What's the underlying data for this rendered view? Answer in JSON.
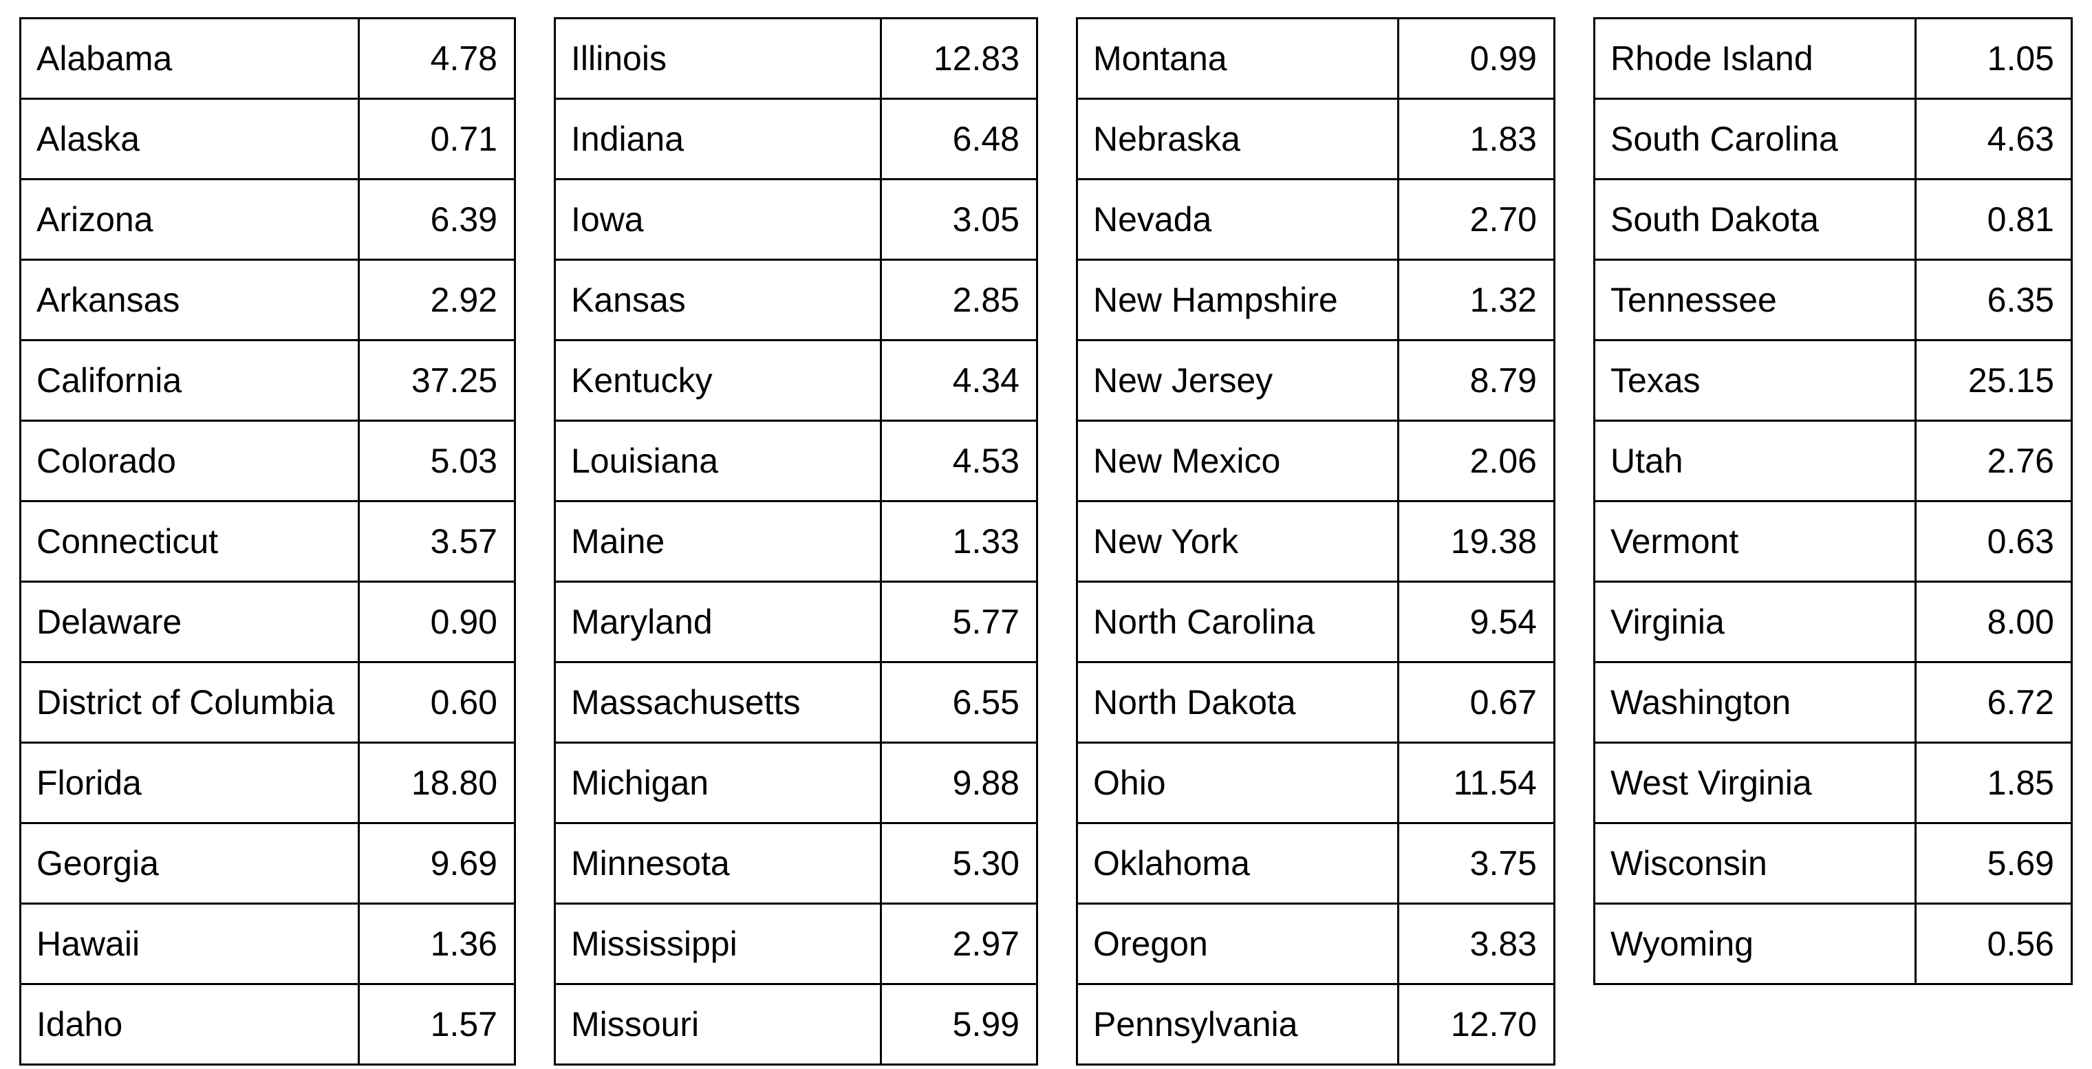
{
  "text_color": "#000000",
  "border_color": "#000000",
  "background_color": "#ffffff",
  "tables": [
    {
      "name": "states-alabama-to-idaho",
      "rows": [
        {
          "state": "Alabama",
          "value": "4.78"
        },
        {
          "state": "Alaska",
          "value": "0.71"
        },
        {
          "state": "Arizona",
          "value": "6.39"
        },
        {
          "state": "Arkansas",
          "value": "2.92"
        },
        {
          "state": "California",
          "value": "37.25"
        },
        {
          "state": "Colorado",
          "value": "5.03"
        },
        {
          "state": "Connecticut",
          "value": "3.57"
        },
        {
          "state": "Delaware",
          "value": "0.90"
        },
        {
          "state": "District of Columbia",
          "value": "0.60"
        },
        {
          "state": "Florida",
          "value": "18.80"
        },
        {
          "state": "Georgia",
          "value": "9.69"
        },
        {
          "state": "Hawaii",
          "value": "1.36"
        },
        {
          "state": "Idaho",
          "value": "1.57"
        }
      ]
    },
    {
      "name": "states-illinois-to-missouri",
      "rows": [
        {
          "state": "Illinois",
          "value": "12.83"
        },
        {
          "state": "Indiana",
          "value": "6.48"
        },
        {
          "state": "Iowa",
          "value": "3.05"
        },
        {
          "state": "Kansas",
          "value": "2.85"
        },
        {
          "state": "Kentucky",
          "value": "4.34"
        },
        {
          "state": "Louisiana",
          "value": "4.53"
        },
        {
          "state": "Maine",
          "value": "1.33"
        },
        {
          "state": "Maryland",
          "value": "5.77"
        },
        {
          "state": "Massachusetts",
          "value": "6.55"
        },
        {
          "state": "Michigan",
          "value": "9.88"
        },
        {
          "state": "Minnesota",
          "value": "5.30"
        },
        {
          "state": "Mississippi",
          "value": "2.97"
        },
        {
          "state": "Missouri",
          "value": "5.99"
        }
      ]
    },
    {
      "name": "states-montana-to-pennsylvania",
      "rows": [
        {
          "state": "Montana",
          "value": "0.99"
        },
        {
          "state": "Nebraska",
          "value": "1.83"
        },
        {
          "state": "Nevada",
          "value": "2.70"
        },
        {
          "state": "New Hampshire",
          "value": "1.32"
        },
        {
          "state": "New Jersey",
          "value": "8.79"
        },
        {
          "state": "New Mexico",
          "value": "2.06"
        },
        {
          "state": "New York",
          "value": "19.38"
        },
        {
          "state": "North Carolina",
          "value": "9.54"
        },
        {
          "state": "North Dakota",
          "value": "0.67"
        },
        {
          "state": "Ohio",
          "value": "11.54"
        },
        {
          "state": "Oklahoma",
          "value": "3.75"
        },
        {
          "state": "Oregon",
          "value": "3.83"
        },
        {
          "state": "Pennsylvania",
          "value": "12.70"
        }
      ]
    },
    {
      "name": "states-rhode-island-to-wyoming",
      "rows": [
        {
          "state": "Rhode Island",
          "value": "1.05"
        },
        {
          "state": "South Carolina",
          "value": "4.63"
        },
        {
          "state": "South Dakota",
          "value": "0.81"
        },
        {
          "state": "Tennessee",
          "value": "6.35"
        },
        {
          "state": "Texas",
          "value": "25.15"
        },
        {
          "state": "Utah",
          "value": "2.76"
        },
        {
          "state": "Vermont",
          "value": "0.63"
        },
        {
          "state": "Virginia",
          "value": "8.00"
        },
        {
          "state": "Washington",
          "value": "6.72"
        },
        {
          "state": "West Virginia",
          "value": "1.85"
        },
        {
          "state": "Wisconsin",
          "value": "5.69"
        },
        {
          "state": "Wyoming",
          "value": "0.56"
        }
      ]
    }
  ]
}
